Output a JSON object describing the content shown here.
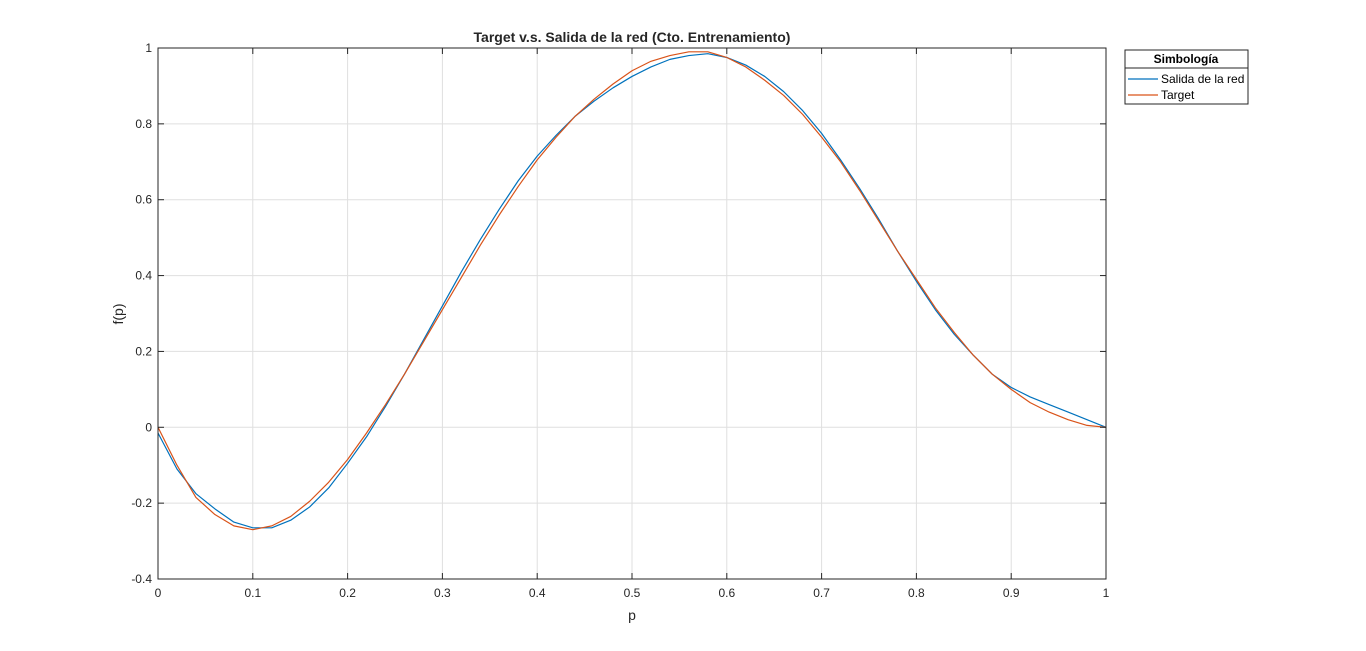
{
  "chart_data": {
    "type": "line",
    "title": "Target v.s. Salida de la red (Cto. Entrenamiento)",
    "xlabel": "p",
    "ylabel": "f(p)",
    "xlim": [
      0,
      1
    ],
    "ylim": [
      -0.4,
      1
    ],
    "xticks": [
      0,
      0.1,
      0.2,
      0.3,
      0.4,
      0.5,
      0.6,
      0.7,
      0.8,
      0.9,
      1
    ],
    "yticks": [
      -0.4,
      -0.2,
      0,
      0.2,
      0.4,
      0.6,
      0.8,
      1
    ],
    "xtick_labels": [
      "0",
      "0.1",
      "0.2",
      "0.3",
      "0.4",
      "0.5",
      "0.6",
      "0.7",
      "0.8",
      "0.9",
      "1"
    ],
    "ytick_labels": [
      "-0.4",
      "-0.2",
      "0",
      "0.2",
      "0.4",
      "0.6",
      "0.8",
      "1"
    ],
    "grid": true,
    "legend": {
      "title": "Simbología",
      "placement": "outside-top-right"
    },
    "series": [
      {
        "name": "Salida de la red",
        "color": "#0072BD",
        "x": [
          0,
          0.02,
          0.04,
          0.06,
          0.08,
          0.1,
          0.12,
          0.14,
          0.16,
          0.18,
          0.2,
          0.22,
          0.24,
          0.26,
          0.28,
          0.3,
          0.32,
          0.34,
          0.36,
          0.38,
          0.4,
          0.42,
          0.44,
          0.46,
          0.48,
          0.5,
          0.52,
          0.54,
          0.56,
          0.58,
          0.6,
          0.62,
          0.64,
          0.66,
          0.68,
          0.7,
          0.72,
          0.74,
          0.76,
          0.78,
          0.8,
          0.82,
          0.84,
          0.86,
          0.88,
          0.9,
          0.92,
          0.94,
          0.96,
          0.98,
          1
        ],
        "y": [
          -0.015,
          -0.11,
          -0.175,
          -0.215,
          -0.25,
          -0.265,
          -0.265,
          -0.245,
          -0.21,
          -0.16,
          -0.095,
          -0.025,
          0.055,
          0.14,
          0.23,
          0.32,
          0.41,
          0.495,
          0.575,
          0.65,
          0.715,
          0.77,
          0.82,
          0.86,
          0.895,
          0.925,
          0.95,
          0.97,
          0.98,
          0.985,
          0.975,
          0.955,
          0.925,
          0.885,
          0.835,
          0.775,
          0.705,
          0.63,
          0.55,
          0.465,
          0.385,
          0.31,
          0.245,
          0.19,
          0.14,
          0.105,
          0.08,
          0.06,
          0.04,
          0.02,
          0
        ]
      },
      {
        "name": "Target",
        "color": "#D95319",
        "x": [
          0,
          0.02,
          0.04,
          0.06,
          0.08,
          0.1,
          0.12,
          0.14,
          0.16,
          0.18,
          0.2,
          0.22,
          0.24,
          0.26,
          0.28,
          0.3,
          0.32,
          0.34,
          0.36,
          0.38,
          0.4,
          0.42,
          0.44,
          0.46,
          0.48,
          0.5,
          0.52,
          0.54,
          0.56,
          0.58,
          0.6,
          0.62,
          0.64,
          0.66,
          0.68,
          0.7,
          0.72,
          0.74,
          0.76,
          0.78,
          0.8,
          0.82,
          0.84,
          0.86,
          0.88,
          0.9,
          0.92,
          0.94,
          0.96,
          0.98,
          1
        ],
        "y": [
          0,
          -0.1,
          -0.185,
          -0.23,
          -0.26,
          -0.27,
          -0.26,
          -0.235,
          -0.195,
          -0.145,
          -0.085,
          -0.015,
          0.06,
          0.14,
          0.225,
          0.31,
          0.395,
          0.48,
          0.56,
          0.635,
          0.705,
          0.765,
          0.82,
          0.865,
          0.905,
          0.94,
          0.965,
          0.98,
          0.99,
          0.99,
          0.975,
          0.95,
          0.915,
          0.875,
          0.825,
          0.765,
          0.7,
          0.625,
          0.545,
          0.465,
          0.39,
          0.315,
          0.25,
          0.19,
          0.14,
          0.1,
          0.065,
          0.04,
          0.02,
          0.005,
          0
        ]
      }
    ]
  }
}
